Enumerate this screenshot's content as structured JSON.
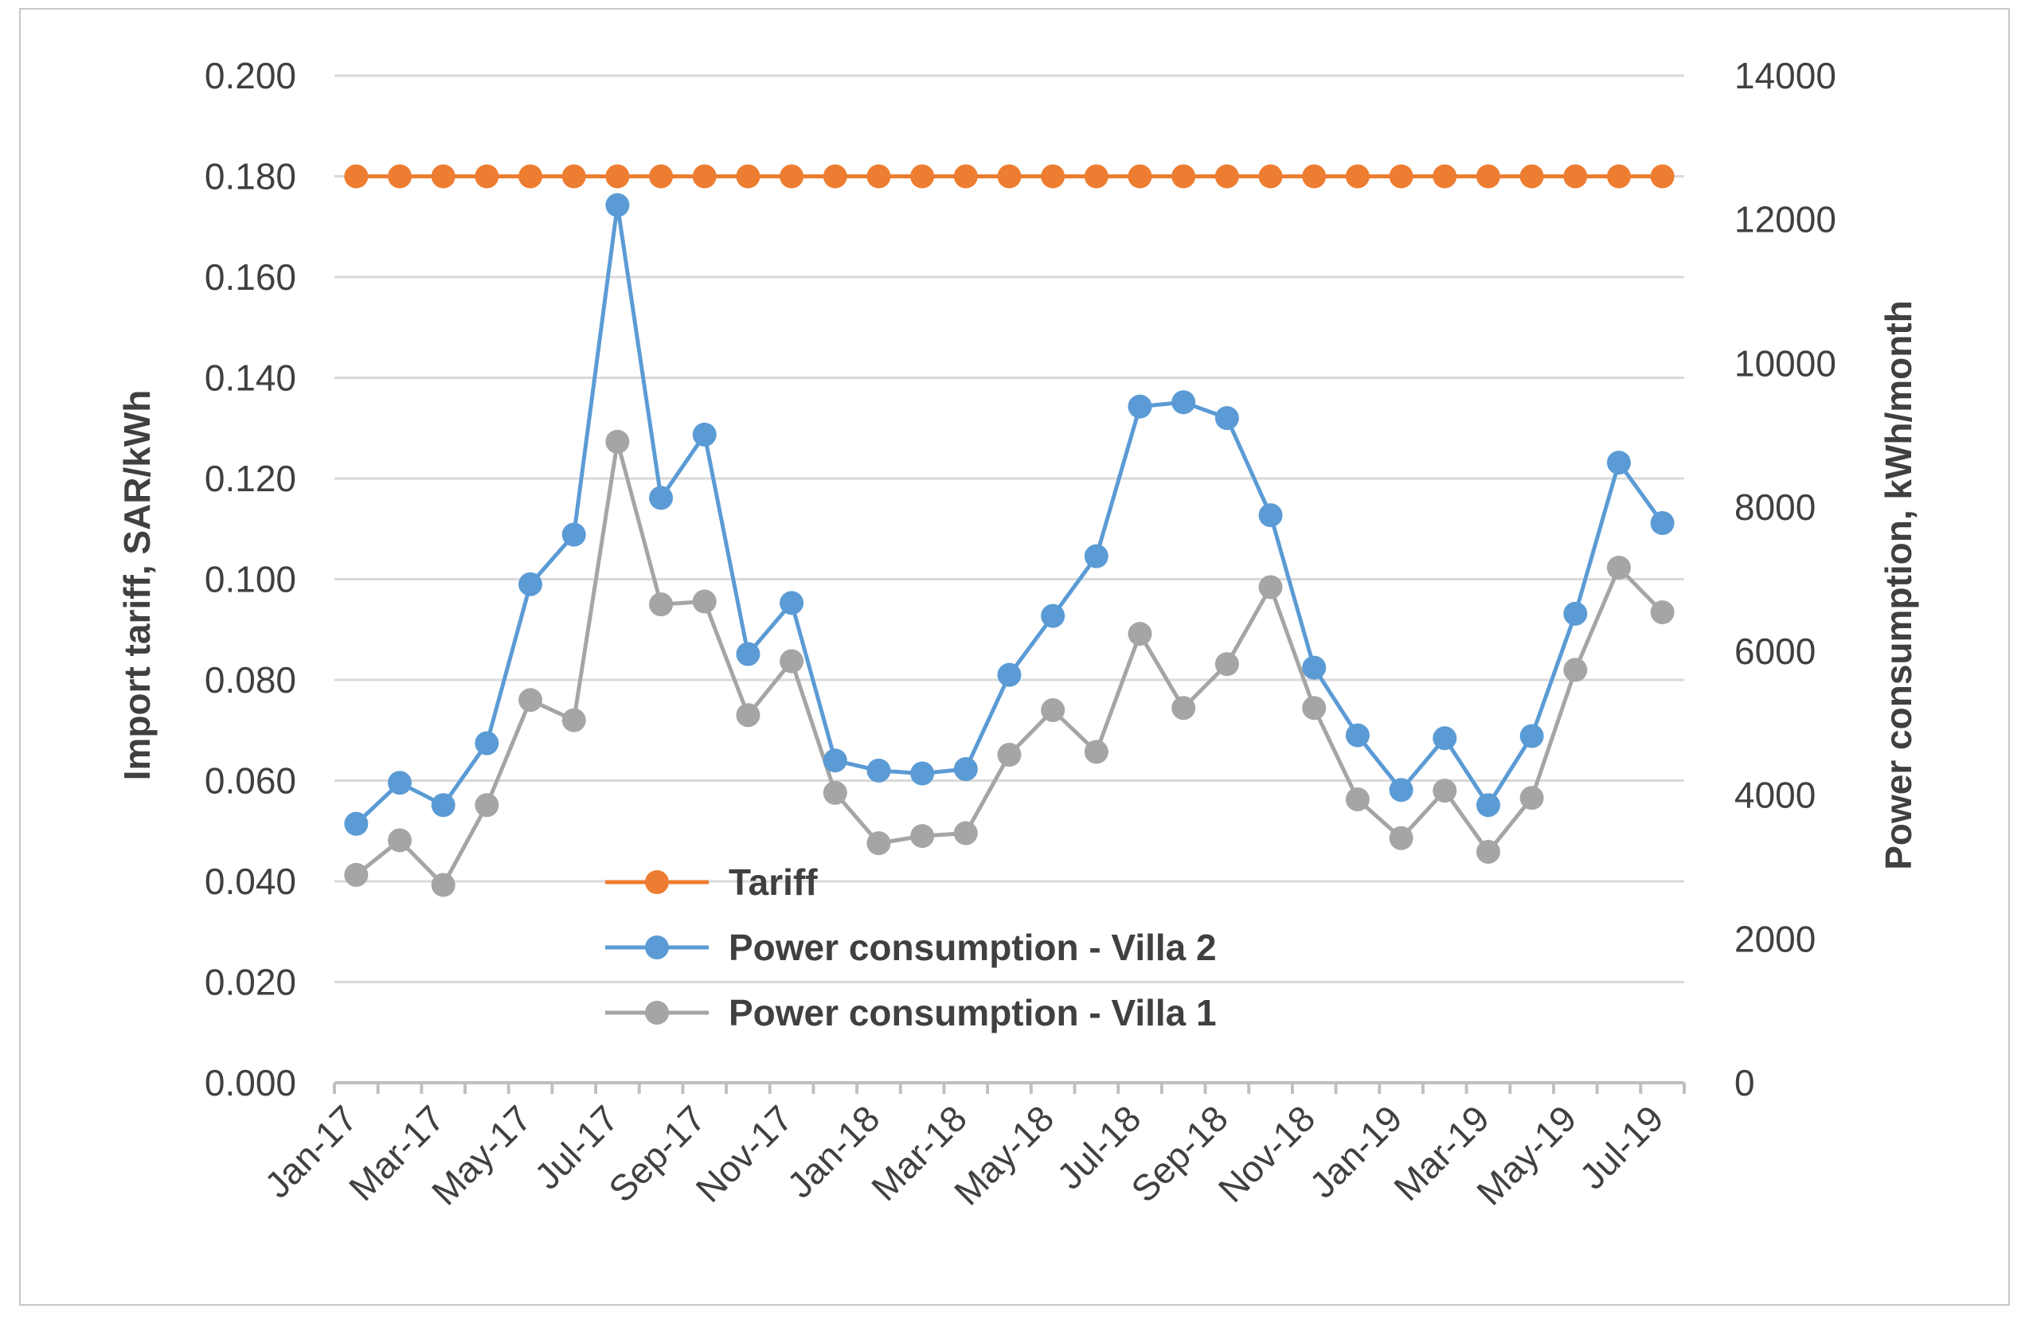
{
  "chart_data": {
    "type": "line",
    "title": "",
    "x": [
      "Jan-17",
      "Feb-17",
      "Mar-17",
      "Apr-17",
      "May-17",
      "Jun-17",
      "Jul-17",
      "Aug-17",
      "Sep-17",
      "Oct-17",
      "Nov-17",
      "Dec-17",
      "Jan-18",
      "Feb-18",
      "Mar-18",
      "Apr-18",
      "May-18",
      "Jun-18",
      "Jul-18",
      "Aug-18",
      "Sep-18",
      "Oct-18",
      "Nov-18",
      "Dec-18",
      "Jan-19",
      "Feb-19",
      "Mar-19",
      "Apr-19",
      "May-19",
      "Jun-19",
      "Jul-19"
    ],
    "x_tick_labels": [
      "Jan-17",
      "Mar-17",
      "May-17",
      "Jul-17",
      "Sep-17",
      "Nov-17",
      "Jan-18",
      "Mar-18",
      "May-18",
      "Jul-18",
      "Sep-18",
      "Nov-18",
      "Jan-19",
      "Mar-19",
      "May-19",
      "Jul-19"
    ],
    "y_left": {
      "label": "Import tariff, SAR/kWh",
      "range": [
        0,
        0.2
      ],
      "ticks": [
        "0.000",
        "0.020",
        "0.040",
        "0.060",
        "0.080",
        "0.100",
        "0.120",
        "0.140",
        "0.160",
        "0.180",
        "0.200"
      ]
    },
    "y_right": {
      "label": "Power consumption, kWh/month",
      "range": [
        0,
        14000
      ],
      "ticks": [
        "0",
        "2000",
        "4000",
        "6000",
        "8000",
        "10000",
        "12000",
        "14000"
      ]
    },
    "gridlines": true,
    "legend_position": "bottom-center",
    "series": [
      {
        "name": "Tariff",
        "axis": "left",
        "color": "#ED7D31",
        "values": [
          0.18,
          0.18,
          0.18,
          0.18,
          0.18,
          0.18,
          0.18,
          0.18,
          0.18,
          0.18,
          0.18,
          0.18,
          0.18,
          0.18,
          0.18,
          0.18,
          0.18,
          0.18,
          0.18,
          0.18,
          0.18,
          0.18,
          0.18,
          0.18,
          0.18,
          0.18,
          0.18,
          0.18,
          0.18,
          0.18,
          0.18
        ]
      },
      {
        "name": "Power consumption - Villa 2",
        "axis": "right",
        "color": "#5B9BD5",
        "values": [
          3600,
          4170,
          3860,
          4720,
          6930,
          7620,
          12200,
          8130,
          9010,
          5960,
          6670,
          4480,
          4340,
          4300,
          4360,
          5670,
          6490,
          7320,
          9400,
          9460,
          9240,
          7890,
          5770,
          4830,
          4070,
          4790,
          3860,
          4820,
          6520,
          8620,
          7780
        ]
      },
      {
        "name": "Power consumption - Villa 1",
        "axis": "right",
        "color": "#A5A5A5",
        "values": [
          2890,
          3370,
          2750,
          3860,
          5320,
          5040,
          8910,
          6650,
          6690,
          5110,
          5860,
          4030,
          3330,
          3430,
          3470,
          4560,
          5180,
          4600,
          6240,
          5210,
          5820,
          6890,
          5210,
          3940,
          3400,
          4060,
          3210,
          3960,
          5740,
          7160,
          6540
        ]
      }
    ]
  }
}
